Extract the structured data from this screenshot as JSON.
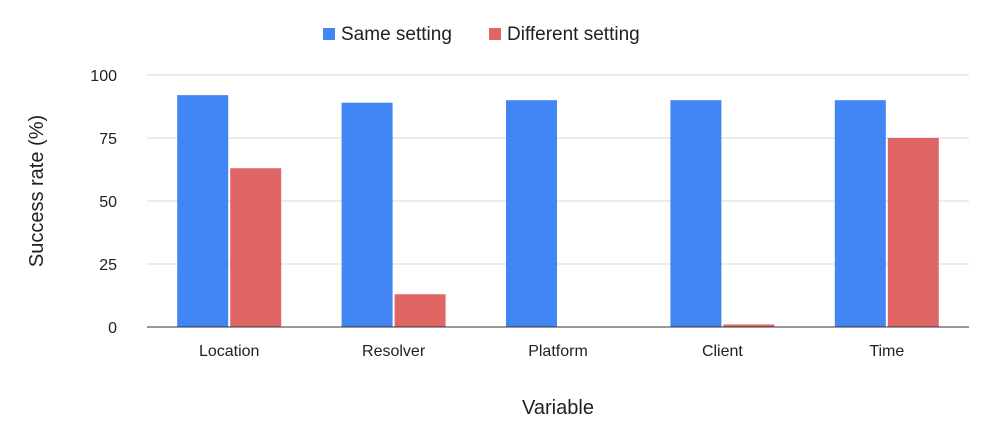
{
  "chart_data": {
    "type": "bar",
    "categories": [
      "Location",
      "Resolver",
      "Platform",
      "Client",
      "Time"
    ],
    "series": [
      {
        "name": "Same setting",
        "color": "#4285f4",
        "values": [
          92,
          89,
          90,
          90,
          90
        ]
      },
      {
        "name": "Different setting",
        "color": "#e06666",
        "values": [
          63,
          13,
          0,
          1,
          75
        ]
      }
    ],
    "xlabel": "Variable",
    "ylabel": "Success rate (%)",
    "ylim": [
      0,
      100
    ],
    "yticks": [
      0,
      25,
      50,
      75,
      100
    ],
    "grid": true,
    "legend_position": "top-center"
  }
}
